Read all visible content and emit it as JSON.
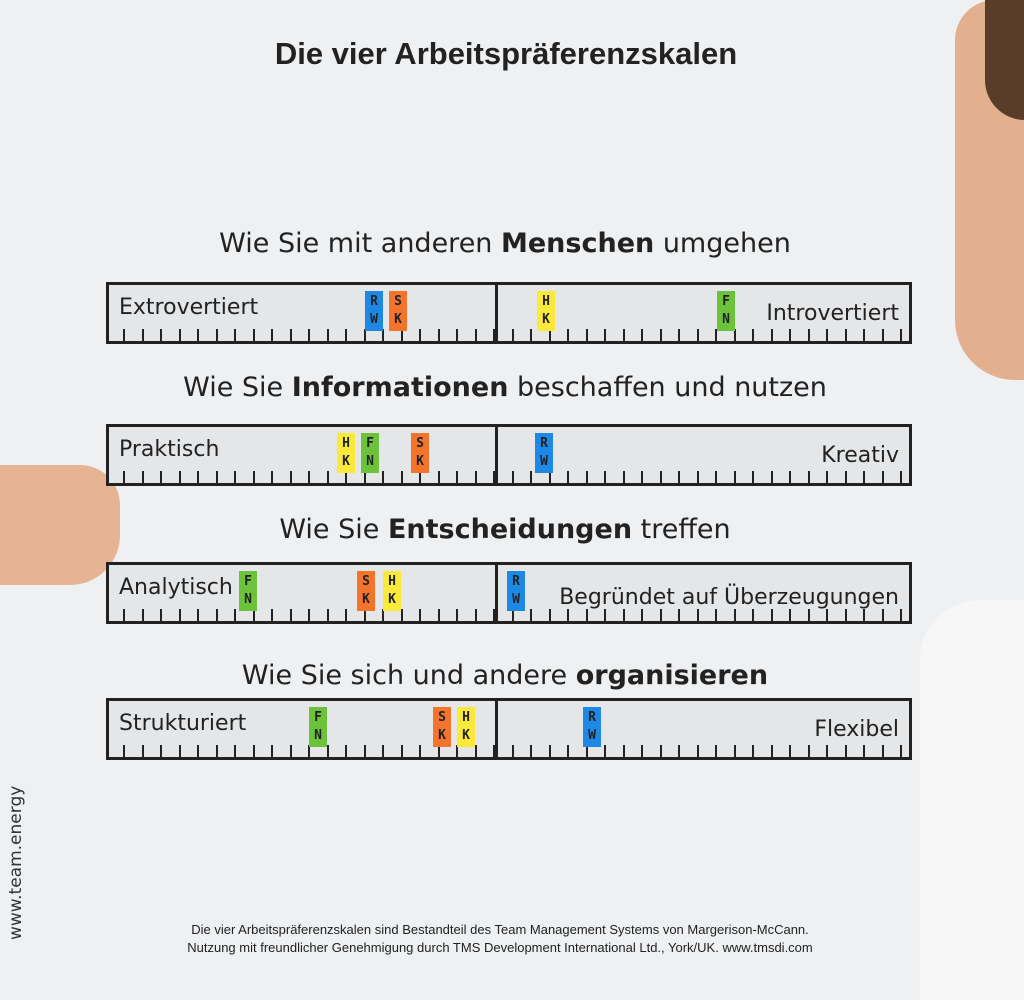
{
  "title": "Die vier Arbeitspräferenzskalen",
  "scales": [
    {
      "heading_before": "Wie Sie mit anderen ",
      "heading_bold": "Menschen",
      "heading_after": " umgehen",
      "left": "Extrovertiert",
      "right": "Introvertiert",
      "notes": [
        {
          "lines": [
            "R",
            "W"
          ],
          "color": "#1e88e5"
        },
        {
          "lines": [
            "S",
            "K"
          ],
          "color": "#f4742b"
        },
        {
          "lines": [
            "H",
            "K"
          ],
          "color": "#fde93a"
        },
        {
          "lines": [
            "F",
            "N"
          ],
          "color": "#6cc33b"
        }
      ]
    },
    {
      "heading_before": "Wie Sie ",
      "heading_bold": "Informationen",
      "heading_after": " beschaffen und nutzen",
      "left": "Praktisch",
      "right": "Kreativ",
      "notes": [
        {
          "lines": [
            "H",
            "K"
          ],
          "color": "#fde93a"
        },
        {
          "lines": [
            "F",
            "N"
          ],
          "color": "#6cc33b"
        },
        {
          "lines": [
            "S",
            "K"
          ],
          "color": "#f4742b"
        },
        {
          "lines": [
            "R",
            "W"
          ],
          "color": "#1e88e5"
        }
      ]
    },
    {
      "heading_before": "Wie Sie ",
      "heading_bold": "Entscheidungen",
      "heading_after": " treffen",
      "left": "Analytisch",
      "right": "Begründet auf Überzeugungen",
      "notes": [
        {
          "lines": [
            "F",
            "N"
          ],
          "color": "#6cc33b"
        },
        {
          "lines": [
            "S",
            "K"
          ],
          "color": "#f4742b"
        },
        {
          "lines": [
            "H",
            "K"
          ],
          "color": "#fde93a"
        },
        {
          "lines": [
            "R",
            "W"
          ],
          "color": "#1e88e5"
        }
      ]
    },
    {
      "heading_before": "Wie Sie sich und andere ",
      "heading_bold": "organisieren",
      "left": "Strukturiert",
      "right": "Flexibel",
      "notes": [
        {
          "lines": [
            "F",
            "N"
          ],
          "color": "#6cc33b"
        },
        {
          "lines": [
            "S",
            "K"
          ],
          "color": "#f4742b"
        },
        {
          "lines": [
            "H",
            "K"
          ],
          "color": "#fde93a"
        },
        {
          "lines": [
            "R",
            "W"
          ],
          "color": "#1e88e5"
        }
      ]
    }
  ],
  "side_text": "www.team.energy",
  "footer": [
    "Die vier Arbeitspräferenzskalen sind Bestandteil des Team Management Systems von Margerison-McCann.",
    "Nutzung mit freundlicher Genehmigung durch TMS Development International Ltd., York/UK. www.tmsdi.com"
  ]
}
